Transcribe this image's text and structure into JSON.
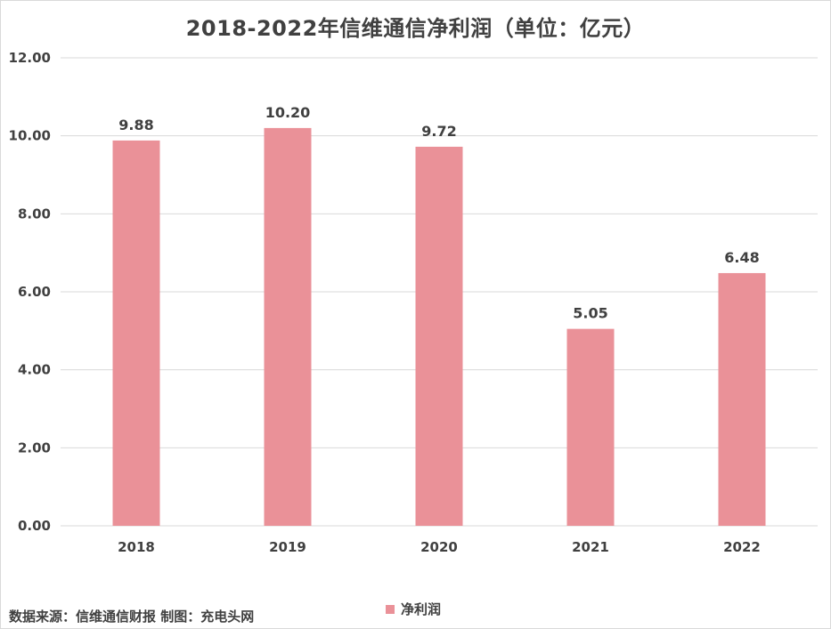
{
  "chart_data": {
    "type": "bar",
    "title": "2018-2022年信维通信净利润（单位：亿元）",
    "categories": [
      "2018",
      "2019",
      "2020",
      "2021",
      "2022"
    ],
    "series": [
      {
        "name": "净利润",
        "values": [
          9.88,
          10.2,
          9.72,
          5.05,
          6.48
        ],
        "data_labels": [
          "9.88",
          "10.20",
          "9.72",
          "5.05",
          "6.48"
        ]
      }
    ],
    "ylim": [
      0,
      12
    ],
    "yticks": [
      "0.00",
      "2.00",
      "4.00",
      "6.00",
      "8.00",
      "10.00",
      "12.00"
    ],
    "ytick_values": [
      0,
      2,
      4,
      6,
      8,
      10,
      12
    ],
    "grid": true,
    "legend_position": "bottom",
    "bar_color": "#EA9198",
    "grid_color": "#d9d9d9"
  },
  "source_note": "数据来源：信维通信财报 制图：充电头网"
}
